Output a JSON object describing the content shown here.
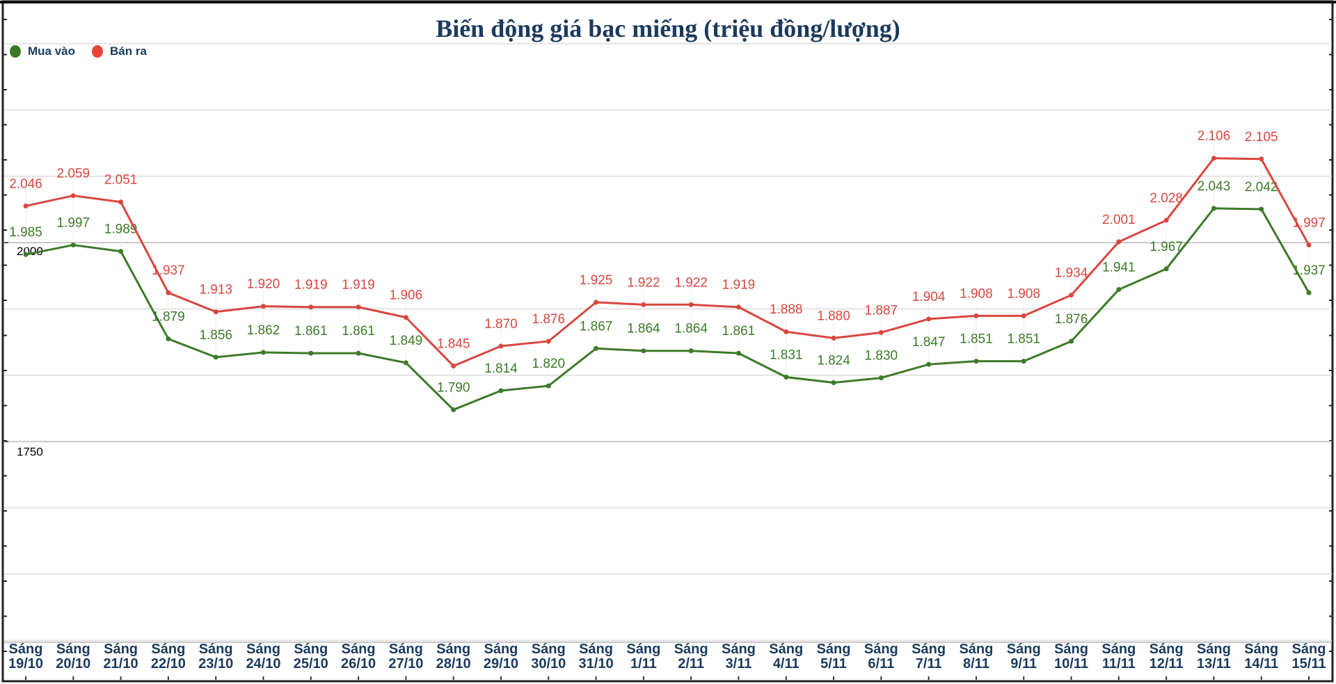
{
  "chart_data": {
    "type": "line",
    "title": "Biến động giá bạc miếng (triệu đồng/lượng)",
    "xlabel": "",
    "ylabel": "",
    "categories": [
      [
        "Sáng",
        "19/10"
      ],
      [
        "Sáng",
        "20/10"
      ],
      [
        "Sáng",
        "21/10"
      ],
      [
        "Sáng",
        "22/10"
      ],
      [
        "Sáng",
        "23/10"
      ],
      [
        "Sáng",
        "24/10"
      ],
      [
        "Sáng",
        "25/10"
      ],
      [
        "Sáng",
        "26/10"
      ],
      [
        "Sáng",
        "27/10"
      ],
      [
        "Sáng",
        "28/10"
      ],
      [
        "Sáng",
        "29/10"
      ],
      [
        "Sáng",
        "30/10"
      ],
      [
        "Sáng",
        "31/10"
      ],
      [
        "Sáng",
        "1/11"
      ],
      [
        "Sáng",
        "2/11"
      ],
      [
        "Sáng",
        "3/11"
      ],
      [
        "Sáng",
        "4/11"
      ],
      [
        "Sáng",
        "5/11"
      ],
      [
        "Sáng",
        "6/11"
      ],
      [
        "Sáng",
        "7/11"
      ],
      [
        "Sáng",
        "8/11"
      ],
      [
        "Sáng",
        "9/11"
      ],
      [
        "Sáng",
        "10/11"
      ],
      [
        "Sáng",
        "11/11"
      ],
      [
        "Sáng",
        "12/11"
      ],
      [
        "Sáng",
        "13/11"
      ],
      [
        "Sáng",
        "14/11"
      ],
      [
        "Sáng",
        "15/11"
      ]
    ],
    "series": [
      {
        "name": "Mua vào",
        "color": "#3d7a28",
        "values": [
          1985,
          1997,
          1989,
          1879,
          1856,
          1862,
          1861,
          1861,
          1849,
          1790,
          1814,
          1820,
          1867,
          1864,
          1864,
          1861,
          1831,
          1824,
          1830,
          1847,
          1851,
          1851,
          1876,
          1941,
          1967,
          2043,
          2042,
          1937
        ]
      },
      {
        "name": "Bán ra",
        "color": "#d9463f",
        "values": [
          2046,
          2059,
          2051,
          1937,
          1913,
          1920,
          1919,
          1919,
          1906,
          1845,
          1870,
          1876,
          1925,
          1922,
          1922,
          1919,
          1888,
          1880,
          1887,
          1904,
          1908,
          1908,
          1934,
          2001,
          2028,
          2106,
          2105,
          1997
        ]
      }
    ],
    "ylim": [
      1500,
      2250
    ],
    "y_tick_labels": [
      "2000",
      "1750"
    ],
    "y_ticks": [
      2000,
      1750
    ],
    "grid": true,
    "legend_position": "top-left",
    "data_labels": true
  },
  "colors": {
    "title": "#1b3a5c",
    "axis_labels": "#1b3a5c",
    "grid": "#dddddd"
  }
}
